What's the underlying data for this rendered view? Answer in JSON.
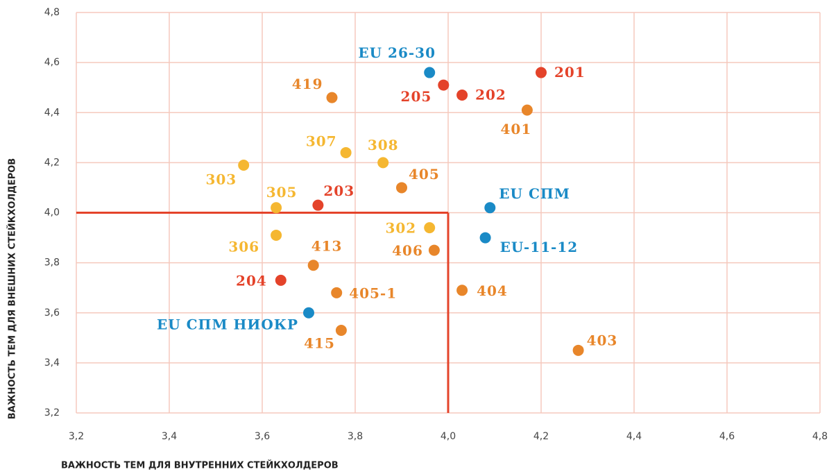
{
  "chart_data": {
    "type": "scatter",
    "x_label": "ВАЖНОСТЬ ТЕМ ДЛЯ ВНУТРЕННИХ СТЕЙКХОЛДЕРОВ",
    "y_label": "ВАЖНОСТЬ ТЕМ ДЛЯ ВНЕШНИХ СТЕЙКХОЛДЕРОВ",
    "xlim": [
      3.2,
      4.8
    ],
    "ylim": [
      3.2,
      4.8
    ],
    "xticks": [
      {
        "value": 3.2,
        "label": "3,2"
      },
      {
        "value": 3.4,
        "label": "3,4"
      },
      {
        "value": 3.6,
        "label": "3,6"
      },
      {
        "value": 3.8,
        "label": "3,8"
      },
      {
        "value": 4.0,
        "label": "4,0"
      },
      {
        "value": 4.2,
        "label": "4,2"
      },
      {
        "value": 4.4,
        "label": "4,4"
      },
      {
        "value": 4.6,
        "label": "4,6"
      },
      {
        "value": 4.8,
        "label": "4,8"
      }
    ],
    "yticks": [
      {
        "value": 3.2,
        "label": "3,2"
      },
      {
        "value": 3.4,
        "label": "3,4"
      },
      {
        "value": 3.6,
        "label": "3,6"
      },
      {
        "value": 3.8,
        "label": "3,8"
      },
      {
        "value": 4.0,
        "label": "4,0"
      },
      {
        "value": 4.2,
        "label": "4,2"
      },
      {
        "value": 4.4,
        "label": "4,4"
      },
      {
        "value": 4.6,
        "label": "4,6"
      },
      {
        "value": 4.8,
        "label": "4,8"
      }
    ],
    "grid": true,
    "grid_color": "#f5c9bd",
    "threshold": {
      "x": 4.0,
      "y": 4.0,
      "color": "#e4432a"
    },
    "points": [
      {
        "label": "EU 26-30",
        "x": 3.96,
        "y": 4.56,
        "color": "#1a8ac6"
      },
      {
        "label": "205",
        "x": 3.99,
        "y": 4.51,
        "color": "#e4432a"
      },
      {
        "label": "202",
        "x": 4.03,
        "y": 4.47,
        "color": "#e4432a"
      },
      {
        "label": "201",
        "x": 4.2,
        "y": 4.56,
        "color": "#e4432a"
      },
      {
        "label": "419",
        "x": 3.75,
        "y": 4.46,
        "color": "#e8862a"
      },
      {
        "label": "401",
        "x": 4.17,
        "y": 4.41,
        "color": "#e8862a"
      },
      {
        "label": "307",
        "x": 3.78,
        "y": 4.24,
        "color": "#f5b731"
      },
      {
        "label": "308",
        "x": 3.86,
        "y": 4.2,
        "color": "#f5b731"
      },
      {
        "label": "303",
        "x": 3.56,
        "y": 4.19,
        "color": "#f5b731"
      },
      {
        "label": "405",
        "x": 3.9,
        "y": 4.1,
        "color": "#e8862a"
      },
      {
        "label": "305",
        "x": 3.63,
        "y": 4.02,
        "color": "#f5b731"
      },
      {
        "label": "203",
        "x": 3.72,
        "y": 4.03,
        "color": "#e4432a"
      },
      {
        "label": "EU СПМ",
        "x": 4.09,
        "y": 4.02,
        "color": "#1a8ac6"
      },
      {
        "label": "302",
        "x": 3.96,
        "y": 3.94,
        "color": "#f5b731"
      },
      {
        "label": "306",
        "x": 3.63,
        "y": 3.91,
        "color": "#f5b731"
      },
      {
        "label": "EU-11-12",
        "x": 4.08,
        "y": 3.9,
        "color": "#1a8ac6"
      },
      {
        "label": "406",
        "x": 3.97,
        "y": 3.85,
        "color": "#e8862a"
      },
      {
        "label": "413",
        "x": 3.71,
        "y": 3.79,
        "color": "#e8862a"
      },
      {
        "label": "204",
        "x": 3.64,
        "y": 3.73,
        "color": "#e4432a"
      },
      {
        "label": "405-1",
        "x": 3.76,
        "y": 3.68,
        "color": "#e8862a"
      },
      {
        "label": "404",
        "x": 4.03,
        "y": 3.69,
        "color": "#e8862a"
      },
      {
        "label": "EU СПМ НИОКР",
        "x": 3.7,
        "y": 3.6,
        "color": "#1a8ac6"
      },
      {
        "label": "415",
        "x": 3.77,
        "y": 3.53,
        "color": "#e8862a"
      },
      {
        "label": "403",
        "x": 4.28,
        "y": 3.45,
        "color": "#e8862a"
      }
    ]
  }
}
